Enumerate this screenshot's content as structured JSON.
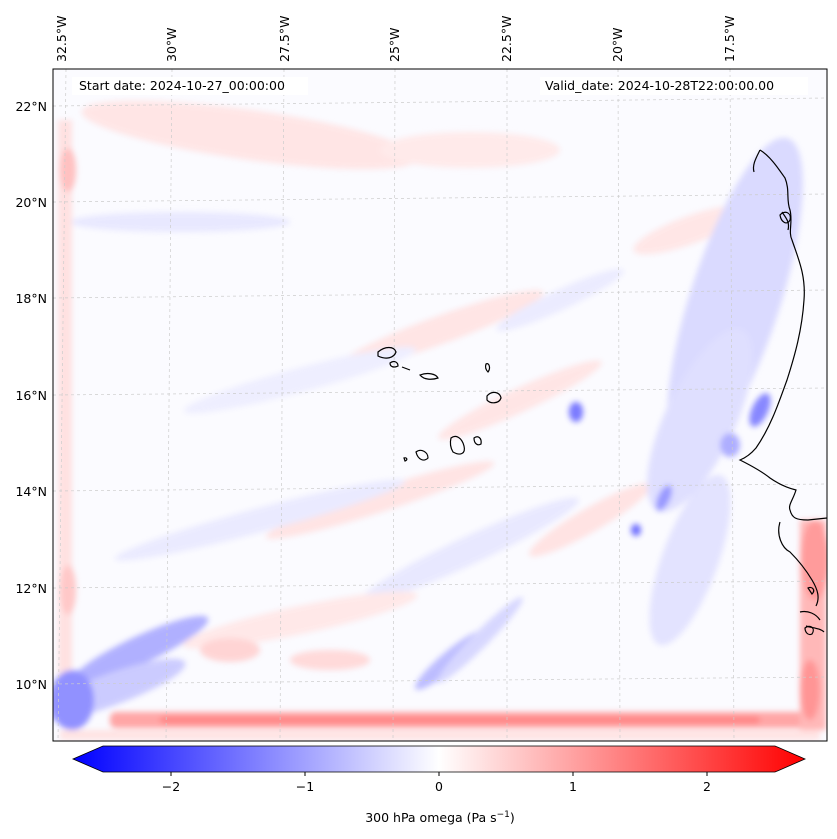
{
  "header": {
    "start_date": "Start date: 2024-10-27_00:00:00",
    "valid_date": "Valid_date: 2024-10-28T22:00:00.00"
  },
  "map": {
    "field": "300 hPa omega",
    "lon_labels": [
      "32.5°W",
      "30°W",
      "27.5°W",
      "25°W",
      "22.5°W",
      "20°W",
      "17.5°W"
    ],
    "lat_labels": [
      "22°N",
      "20°N",
      "18°N",
      "16°N",
      "14°N",
      "12°N",
      "10°N"
    ],
    "coastline_color": "#000000",
    "grid": true
  },
  "colorbar": {
    "label": "300 hPa omega (Pa s",
    "label_sup": "−1",
    "label_close": ")",
    "ticks": [
      "−2",
      "−1",
      "0",
      "1",
      "2"
    ],
    "cmap": "bwr",
    "low_color": "#0000ff",
    "mid_color": "#ffffff",
    "high_color": "#ff0000",
    "extend": "both"
  }
}
